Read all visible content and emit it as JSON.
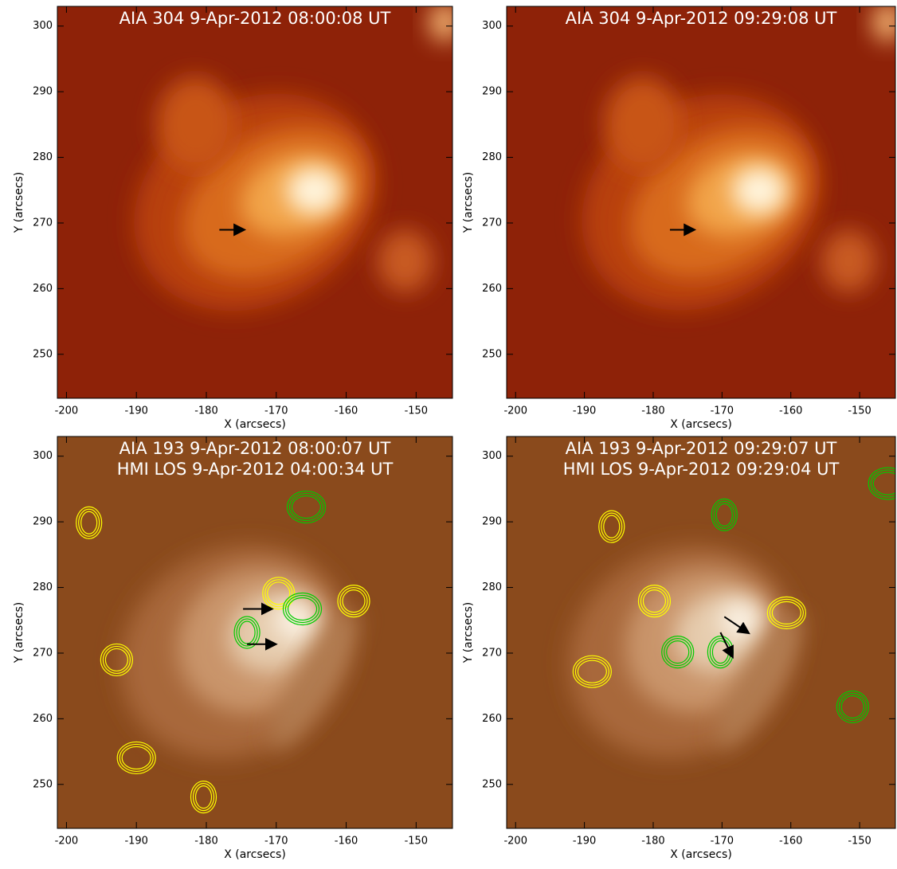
{
  "chart_data": [
    {
      "type": "image",
      "title": "AIA 304  9-Apr-2012 08:00:08 UT",
      "colormap": "aia304",
      "xlabel": "X (arcsecs)",
      "ylabel": "Y (arcsecs)",
      "xlim": [
        -201.3,
        -144.8
      ],
      "ylim": [
        243.3,
        303
      ],
      "xticks": [
        -200,
        -190,
        -180,
        -170,
        -160,
        -150
      ],
      "yticks": [
        250,
        260,
        270,
        280,
        290,
        300
      ]
    },
    {
      "type": "image",
      "title": "AIA 304  9-Apr-2012 09:29:08 UT",
      "colormap": "aia304",
      "xlabel": "X (arcsecs)",
      "ylabel": "Y (arcsecs)",
      "xlim": [
        -201.3,
        -144.8
      ],
      "ylim": [
        243.3,
        303
      ],
      "xticks": [
        -200,
        -190,
        -180,
        -170,
        -160,
        -150
      ],
      "yticks": [
        250,
        260,
        270,
        280,
        290,
        300
      ]
    },
    {
      "type": "image",
      "title": "AIA 193 9-Apr-2012 08:00:07 UT",
      "subtitle": "HMI LOS 9-Apr-2012 04:00:34 UT",
      "colormap": "aia193",
      "xlabel": "X (arcsecs)",
      "ylabel": "Y (arcsecs)",
      "xlim": [
        -201.3,
        -144.8
      ],
      "ylim": [
        243.3,
        303
      ],
      "xticks": [
        -200,
        -190,
        -180,
        -170,
        -160,
        -150
      ],
      "yticks": [
        250,
        260,
        270,
        280,
        290,
        300
      ]
    },
    {
      "type": "image",
      "title": "AIA 193 9-Apr-2012 09:29:07 UT",
      "subtitle": "HMI LOS 9-Apr-2012 09:29:04 UT",
      "colormap": "aia193",
      "xlabel": "X (arcsecs)",
      "ylabel": "Y (arcsecs)",
      "xlim": [
        -201.3,
        -144.8
      ],
      "ylim": [
        243.3,
        303
      ],
      "xticks": [
        -200,
        -190,
        -180,
        -170,
        -160,
        -150
      ],
      "yticks": [
        250,
        260,
        270,
        280,
        290,
        300
      ]
    }
  ]
}
